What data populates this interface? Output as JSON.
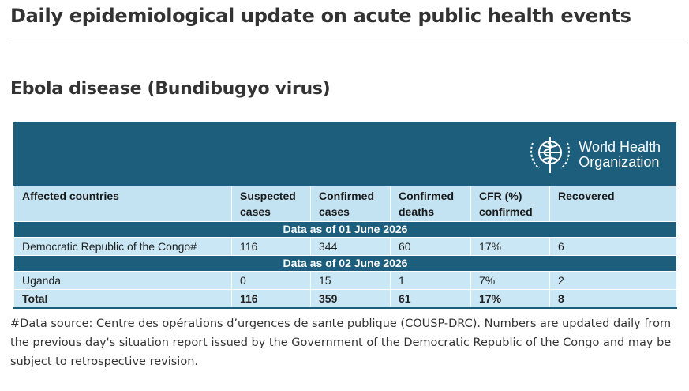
{
  "header": {
    "title": "Daily epidemiological update on acute public health events"
  },
  "section": {
    "title": "Ebola disease (Bundibugyo virus)"
  },
  "logo": {
    "lines": [
      "World Health",
      "Organization"
    ]
  },
  "table": {
    "columns": [
      "Affected countries",
      "Suspected cases",
      "Confirmed cases",
      "Confirmed deaths",
      "CFR (%) confirmed",
      "Recovered"
    ],
    "groups": [
      {
        "label": "Data as of 01 June 2026",
        "rows": [
          [
            "Democratic Republic of the Congo#",
            116,
            344,
            60,
            "17%",
            6
          ]
        ]
      },
      {
        "label": "Data as of 02 June 2026",
        "rows": [
          [
            "Uganda",
            0,
            15,
            1,
            "7%",
            2
          ]
        ]
      }
    ],
    "total": [
      "Total",
      116,
      359,
      61,
      "17%",
      8
    ]
  },
  "footnote": "#Data source: Centre des opérations d’urgences de sante publique (COUSP-DRC). Numbers are updated daily from the previous day's situation report issued by the Government of the Democratic Republic of the Congo and may be subject to retrospective revision."
}
